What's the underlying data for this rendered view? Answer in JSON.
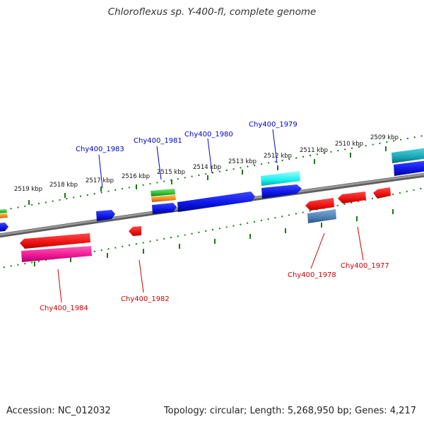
{
  "title": "Chloroflexus sp. Y-400-fl, complete genome",
  "footer": {
    "accession": "Accession: NC_012032",
    "summary": "Topology: circular; Length: 5,268,950 bp; Genes: 4,217"
  },
  "colors": {
    "background": "#ffffff",
    "backbone": "#808080",
    "tick": "#1a7a1a",
    "forward_label": "#0000cc",
    "reverse_label": "#cc0000",
    "blue": "#0a14e6",
    "red": "#ee1111",
    "magenta": "#ee1493",
    "cyan": "#19f0f0",
    "teal": "#1aa6b5",
    "steelblue": "#4c7fb5",
    "green": "#2bbf2b",
    "orange": "#f08c14"
  },
  "tick_labels": {
    "outer": [
      "2519 kbp",
      "2518 kbp",
      "2517 kbp",
      "2516 kbp",
      "2515 kbp",
      "2514 kbp",
      "2513 kbp",
      "2512 kbp",
      "2511 kbp",
      "2510 kbp",
      "2509 kbp"
    ]
  },
  "gene_labels": {
    "forward": [
      "Chy400_1983",
      "Chy400_1981",
      "Chy400_1980",
      "Chy400_1979"
    ],
    "reverse": [
      "Chy400_1984",
      "Chy400_1982",
      "Chy400_1978",
      "Chy400_1977"
    ]
  }
}
